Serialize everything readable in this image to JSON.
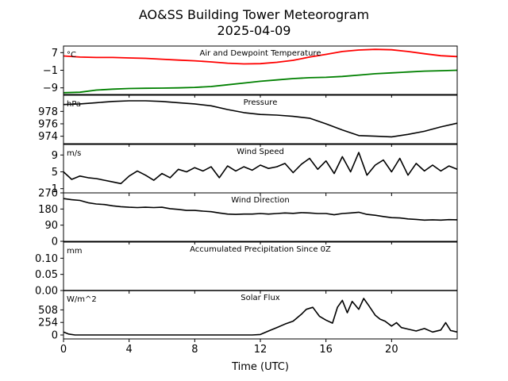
{
  "figure": {
    "title_line1": "AO&SS Building Tower Meteorogram",
    "title_line2": "2025-04-09",
    "xlabel": "Time (UTC)",
    "x_ticks": [
      "0",
      "4",
      "8",
      "12",
      "16",
      "20"
    ]
  },
  "chart_data": [
    {
      "type": "line",
      "title": "Air and Dewpoint Temperature",
      "unit": "°C",
      "xlim": [
        0,
        24
      ],
      "ylim": [
        -12,
        10
      ],
      "y_ticks": [
        7,
        -1,
        -9
      ],
      "y_tick_labels": [
        "7",
        "−1",
        "−9"
      ],
      "x": [
        0,
        1,
        2,
        3,
        4,
        5,
        6,
        7,
        8,
        9,
        10,
        11,
        12,
        13,
        14,
        15,
        16,
        17,
        18,
        19,
        20,
        21,
        22,
        23,
        24
      ],
      "series": [
        {
          "color": "#ff0000",
          "values": [
            5.5,
            5.0,
            4.8,
            4.8,
            4.6,
            4.4,
            4.0,
            3.6,
            3.3,
            2.8,
            2.2,
            1.9,
            2.0,
            2.6,
            3.5,
            5.0,
            6.2,
            7.5,
            8.2,
            8.5,
            8.3,
            7.5,
            6.5,
            5.6,
            5.2
          ]
        },
        {
          "color": "#008000",
          "values": [
            -11.2,
            -11.0,
            -10.0,
            -9.6,
            -9.3,
            -9.2,
            -9.1,
            -9.0,
            -8.8,
            -8.4,
            -7.6,
            -6.8,
            -6.0,
            -5.4,
            -4.8,
            -4.4,
            -4.2,
            -3.8,
            -3.2,
            -2.6,
            -2.2,
            -1.8,
            -1.4,
            -1.2,
            -1.0
          ]
        }
      ]
    },
    {
      "type": "line",
      "title": "Pressure",
      "unit": "hPa",
      "xlim": [
        0,
        24
      ],
      "ylim": [
        972.8,
        980.6
      ],
      "y_ticks": [
        978,
        976,
        974
      ],
      "y_tick_labels": [
        "978",
        "976",
        "974"
      ],
      "x": [
        0,
        1,
        2,
        3,
        4,
        5,
        6,
        7,
        8,
        9,
        10,
        11,
        12,
        13,
        14,
        15,
        16,
        17,
        18,
        19,
        20,
        21,
        22,
        23,
        24
      ],
      "series": [
        {
          "color": "#000000",
          "values": [
            979.1,
            979.2,
            979.4,
            979.6,
            979.7,
            979.7,
            979.6,
            979.4,
            979.2,
            978.9,
            978.3,
            977.8,
            977.5,
            977.4,
            977.2,
            976.9,
            976.0,
            975.0,
            974.1,
            974.0,
            973.9,
            974.3,
            974.8,
            975.5,
            976.1
          ]
        }
      ]
    },
    {
      "type": "line",
      "title": "Wind Speed",
      "unit": "m/s",
      "xlim": [
        0,
        24
      ],
      "ylim": [
        0,
        11.5
      ],
      "y_ticks": [
        9,
        5,
        1
      ],
      "y_tick_labels": [
        "9",
        "5",
        "1"
      ],
      "x": [
        0,
        0.5,
        1,
        1.5,
        2,
        2.5,
        3,
        3.5,
        4,
        4.5,
        5,
        5.5,
        6,
        6.5,
        7,
        7.5,
        8,
        8.5,
        9,
        9.5,
        10,
        10.5,
        11,
        11.5,
        12,
        12.5,
        13,
        13.5,
        14,
        14.5,
        15,
        15.5,
        16,
        16.5,
        17,
        17.5,
        18,
        18.5,
        19,
        19.5,
        20,
        20.5,
        21,
        21.5,
        22,
        22.5,
        23,
        23.5,
        24
      ],
      "series": [
        {
          "color": "#000000",
          "values": [
            5.0,
            3.2,
            4.0,
            3.6,
            3.4,
            3.0,
            2.6,
            2.2,
            4.0,
            5.2,
            4.2,
            3.0,
            4.6,
            3.6,
            5.6,
            5.0,
            6.0,
            5.2,
            6.2,
            3.6,
            6.4,
            5.2,
            6.2,
            5.4,
            6.6,
            5.8,
            6.2,
            7.0,
            4.8,
            6.8,
            8.2,
            5.6,
            7.6,
            4.6,
            8.6,
            5.0,
            9.6,
            4.2,
            6.6,
            7.8,
            5.0,
            8.2,
            4.2,
            7.0,
            5.2,
            6.6,
            5.2,
            6.4,
            5.6
          ]
        }
      ]
    },
    {
      "type": "line",
      "title": "Wind Direction",
      "unit": "",
      "xlim": [
        0,
        24
      ],
      "ylim": [
        0,
        270
      ],
      "y_ticks": [
        270,
        180,
        90,
        0
      ],
      "y_tick_labels": [
        "270",
        "180",
        "90",
        "0"
      ],
      "x": [
        0,
        0.5,
        1,
        1.5,
        2,
        2.5,
        3,
        3.5,
        4,
        4.5,
        5,
        5.5,
        6,
        6.5,
        7,
        7.5,
        8,
        8.5,
        9,
        9.5,
        10,
        10.5,
        11,
        11.5,
        12,
        12.5,
        13,
        13.5,
        14,
        14.5,
        15,
        15.5,
        16,
        16.5,
        17,
        17.5,
        18,
        18.5,
        19,
        19.5,
        20,
        20.5,
        21,
        21.5,
        22,
        22.5,
        23,
        23.5,
        24
      ],
      "series": [
        {
          "color": "#000000",
          "values": [
            238,
            232,
            228,
            215,
            208,
            205,
            198,
            193,
            190,
            188,
            190,
            188,
            190,
            182,
            178,
            172,
            172,
            168,
            165,
            158,
            152,
            150,
            152,
            152,
            155,
            152,
            155,
            158,
            156,
            160,
            158,
            155,
            155,
            148,
            155,
            158,
            162,
            150,
            145,
            138,
            132,
            130,
            125,
            122,
            118,
            120,
            118,
            121,
            120
          ]
        }
      ]
    },
    {
      "type": "line",
      "title": "Accumulated Precipitation Since 0Z",
      "unit": "mm",
      "xlim": [
        0,
        24
      ],
      "ylim": [
        0,
        0.15
      ],
      "y_ticks": [
        0.1,
        0.05,
        0.0
      ],
      "y_tick_labels": [
        "0.10",
        "0.05",
        "0.00"
      ],
      "x": [
        0,
        24
      ],
      "series": [
        {
          "color": "#000000",
          "values": [
            0.0,
            0.0
          ]
        }
      ]
    },
    {
      "type": "line",
      "title": "Solar Flux",
      "unit": "W/m^2",
      "xlim": [
        0,
        24
      ],
      "ylim": [
        -80,
        900
      ],
      "y_ticks": [
        508,
        254,
        0
      ],
      "y_tick_labels": [
        "508",
        "254",
        "0"
      ],
      "x": [
        0,
        0.3,
        0.7,
        11.5,
        12.0,
        12.5,
        13.0,
        13.5,
        14.0,
        14.5,
        14.8,
        15.2,
        15.6,
        16.0,
        16.4,
        16.7,
        17.0,
        17.3,
        17.6,
        18.0,
        18.3,
        18.6,
        19.0,
        19.3,
        19.6,
        20.0,
        20.3,
        20.6,
        21.0,
        21.5,
        22.0,
        22.5,
        23.0,
        23.3,
        23.6,
        24.0
      ],
      "series": [
        {
          "color": "#000000",
          "values": [
            60,
            20,
            0,
            0,
            10,
            80,
            150,
            220,
            280,
            420,
            520,
            560,
            380,
            300,
            240,
            560,
            700,
            450,
            680,
            520,
            740,
            600,
            400,
            320,
            280,
            180,
            250,
            150,
            120,
            80,
            130,
            60,
            100,
            250,
            90,
            60
          ]
        }
      ]
    }
  ]
}
